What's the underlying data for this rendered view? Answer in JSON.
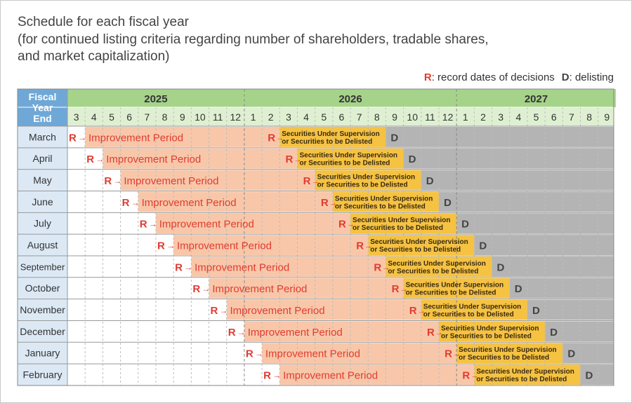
{
  "title": {
    "lines": [
      "Schedule for each fiscal year",
      "(for continued listing criteria regarding number of shareholders, tradable shares,",
      "and market capitalization)"
    ]
  },
  "legend": {
    "r_key": "R",
    "r_text": ": record dates of decisions",
    "d_key": "D",
    "d_text": ": delisting"
  },
  "table": {
    "header_label": "Fiscal Year End",
    "years": [
      {
        "label": "2025",
        "months": [
          "3",
          "4",
          "5",
          "6",
          "7",
          "8",
          "9",
          "10",
          "11",
          "12"
        ]
      },
      {
        "label": "2026",
        "months": [
          "1",
          "2",
          "3",
          "4",
          "5",
          "6",
          "7",
          "8",
          "9",
          "10",
          "11",
          "12"
        ]
      },
      {
        "label": "2027",
        "months": [
          "1",
          "2",
          "3",
          "4",
          "5",
          "6",
          "7",
          "8",
          "9"
        ]
      }
    ],
    "rows": [
      {
        "label": "March",
        "start_month": 0
      },
      {
        "label": "April",
        "start_month": 1
      },
      {
        "label": "May",
        "start_month": 2
      },
      {
        "label": "June",
        "start_month": 3
      },
      {
        "label": "July",
        "start_month": 4
      },
      {
        "label": "August",
        "start_month": 5
      },
      {
        "label": "September",
        "start_month": 6
      },
      {
        "label": "October",
        "start_month": 7
      },
      {
        "label": "November",
        "start_month": 8
      },
      {
        "label": "December",
        "start_month": 9
      },
      {
        "label": "January",
        "start_month": 10
      },
      {
        "label": "February",
        "start_month": 11
      }
    ],
    "phase": {
      "r_marker": "R",
      "d_marker": "D",
      "arrow": "→",
      "improvement_label": "Improvement Period",
      "improvement_months": 12,
      "supervision_line1": "Securities Under Supervision",
      "supervision_line2": "or Securities to be Delisted",
      "supervision_months": 6
    }
  },
  "colors": {
    "header_blue": "#6fa8d6",
    "year_green": "#a6d38a",
    "month_green": "#dff0d2",
    "row_label_bg": "#dce9f5",
    "improvement": "#f8c7a9",
    "supervision": "#f5c242",
    "delisted_gray": "#b4b4b4",
    "r_red": "#e03c31",
    "text_dark": "#333333"
  }
}
